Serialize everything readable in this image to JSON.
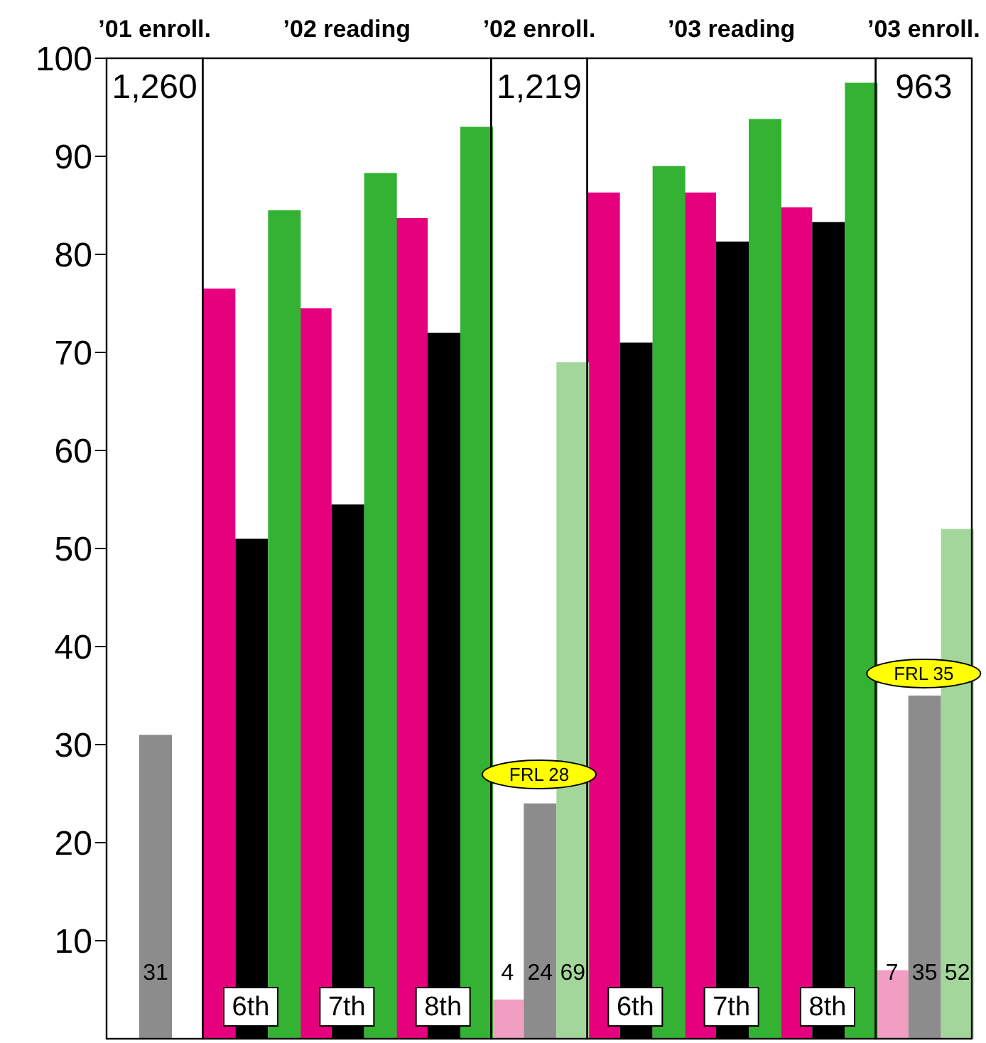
{
  "chart_data": {
    "type": "bar",
    "categories": [
      null,
      "6th",
      "7th",
      "8th",
      null,
      "6th",
      "7th",
      "8th",
      null
    ],
    "series": [
      {
        "values": [
          null,
          76.5,
          74.5,
          83.7,
          4,
          86.3,
          86.3,
          84.8,
          7
        ],
        "colors": [
          "#f19ec2",
          "#e6007e",
          "#e6007e",
          "#e6007e",
          "#f19ec2",
          "#e6007e",
          "#e6007e",
          "#e6007e",
          "#f19ec2"
        ],
        "value_labels": [
          null,
          null,
          null,
          null,
          "4",
          null,
          null,
          null,
          "7"
        ]
      },
      {
        "values": [
          31,
          51,
          54.5,
          72,
          24,
          71,
          81.3,
          83.3,
          35
        ],
        "colors": [
          "#8c8c8c",
          "#000000",
          "#000000",
          "#000000",
          "#8c8c8c",
          "#000000",
          "#000000",
          "#000000",
          "#8c8c8c"
        ],
        "value_labels": [
          "31",
          null,
          null,
          null,
          "24",
          null,
          null,
          null,
          "35"
        ]
      },
      {
        "values": [
          null,
          84.5,
          88.3,
          93,
          69,
          89,
          93.8,
          97.5,
          52
        ],
        "colors": [
          "#a3d69a",
          "#33b233",
          "#33b233",
          "#33b233",
          "#a3d69a",
          "#33b233",
          "#33b233",
          "#33b233",
          "#a3d69a"
        ],
        "value_labels": [
          null,
          null,
          null,
          null,
          "69",
          null,
          null,
          null,
          "52"
        ]
      }
    ],
    "ylim": [
      0,
      100
    ],
    "yticks": [
      10,
      20,
      30,
      40,
      50,
      60,
      70,
      80,
      90,
      100
    ],
    "legend": false,
    "annotations": [
      "’01 enroll.",
      "’02 reading",
      "’02 enroll.",
      "’03 reading",
      "’03 enroll.",
      "1,260",
      "1,219",
      "963",
      "FRL 28",
      "FRL 35"
    ]
  }
}
